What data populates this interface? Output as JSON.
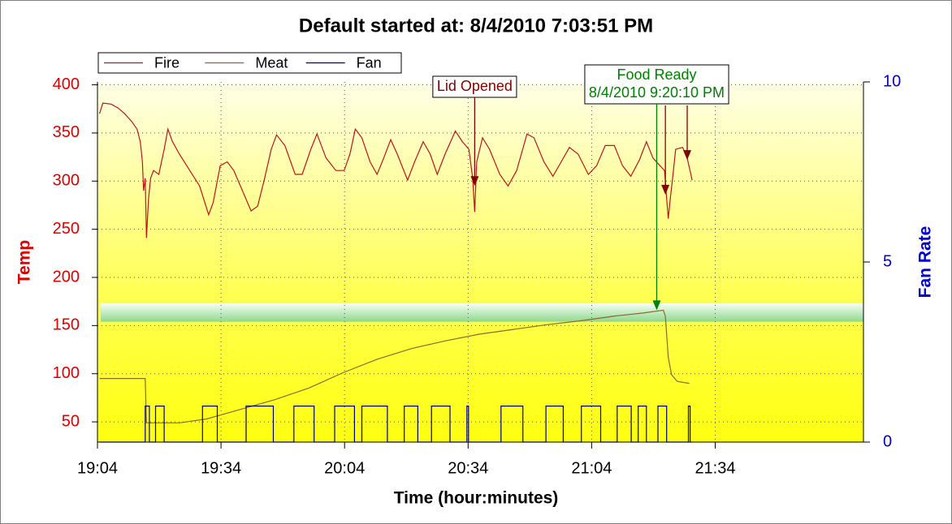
{
  "chart_data": {
    "type": "line",
    "title": "Default started at: 8/4/2010 7:03:51 PM",
    "y_label": "Temp",
    "y2_label": "Fan Rate",
    "x_label": "Time (hour:minutes)",
    "legend": "top-left",
    "grid": true,
    "xlim": [
      1144,
      1330
    ],
    "xticks": [
      {
        "value": 1144,
        "label": "19:04"
      },
      {
        "value": 1174,
        "label": "19:34"
      },
      {
        "value": 1204,
        "label": "20:04"
      },
      {
        "value": 1234,
        "label": "20:34"
      },
      {
        "value": 1264,
        "label": "21:04"
      },
      {
        "value": 1294,
        "label": "21:34"
      }
    ],
    "ylim": [
      29,
      403
    ],
    "yticks": [
      50,
      100,
      150,
      200,
      250,
      300,
      350,
      400
    ],
    "y2lim": [
      0,
      10
    ],
    "y2ticks": [
      0,
      5,
      10
    ],
    "target_band": [
      154,
      173
    ],
    "series": [
      {
        "name": "Fire",
        "color": "#c0141c",
        "x": [
          1144.5,
          1145.3,
          1147.3,
          1149.0,
          1150.6,
          1152.3,
          1153.6,
          1154.4,
          1154.9,
          1155.2,
          1155.6,
          1155.9,
          1156.4,
          1156.9,
          1157.6,
          1158.9,
          1160.2,
          1161.1,
          1162.2,
          1163.9,
          1166.4,
          1168.8,
          1171.0,
          1172.1,
          1173.8,
          1175.5,
          1177.1,
          1179.6,
          1181.3,
          1182.9,
          1184.6,
          1186.2,
          1187.5,
          1189.5,
          1192.0,
          1193.7,
          1195.8,
          1197.3,
          1199.5,
          1201.9,
          1203.9,
          1205.3,
          1206.6,
          1208.2,
          1210.2,
          1211.9,
          1213.5,
          1215.2,
          1216.8,
          1219.3,
          1221.0,
          1223.1,
          1224.8,
          1226.5,
          1228.4,
          1230.9,
          1232.6,
          1234.2,
          1235.1,
          1235.6,
          1236.1,
          1237.5,
          1239.2,
          1241.7,
          1243.7,
          1245.8,
          1248.3,
          1250.0,
          1252.4,
          1254.6,
          1256.6,
          1258.6,
          1260.7,
          1263.2,
          1265.2,
          1267.3,
          1269.5,
          1271.5,
          1273.5,
          1275.6,
          1277.3,
          1278.9,
          1280.6,
          1281.7,
          1282.2,
          1282.6,
          1283.1,
          1283.6,
          1284.4,
          1286.1,
          1287.2,
          1288.4
        ],
        "values": [
          370,
          381,
          380,
          376,
          370,
          362,
          354,
          341,
          320,
          290,
          303,
          241,
          282,
          303,
          311,
          307,
          333,
          354,
          341,
          328,
          311,
          295,
          265,
          278,
          316,
          320,
          311,
          286,
          269,
          274,
          303,
          333,
          348,
          337,
          307,
          307,
          333,
          349,
          324,
          311,
          311,
          328,
          354,
          345,
          320,
          307,
          324,
          343,
          328,
          301,
          320,
          341,
          328,
          307,
          328,
          352,
          341,
          333,
          303,
          268,
          320,
          345,
          333,
          307,
          295,
          311,
          349,
          345,
          320,
          305,
          320,
          335,
          328,
          307,
          316,
          337,
          337,
          316,
          305,
          322,
          341,
          324,
          316,
          311,
          282,
          261,
          282,
          301,
          333,
          335,
          324,
          301
        ]
      },
      {
        "name": "Meat",
        "color": "#8b6a2a",
        "x": [
          1144.5,
          1155.6,
          1155.9,
          1163.9,
          1170.5,
          1178.8,
          1187.0,
          1195.3,
          1203.6,
          1211.9,
          1220.2,
          1228.4,
          1236.7,
          1245.0,
          1253.3,
          1261.5,
          1269.8,
          1276.5,
          1281.4,
          1281.9,
          1282.6,
          1283.4,
          1284.8,
          1287.7
        ],
        "values": [
          95,
          95,
          49,
          49,
          53,
          63,
          73,
          85,
          101,
          115,
          126,
          134,
          141,
          146,
          151,
          155,
          160,
          163,
          166,
          160,
          117,
          99,
          92,
          90
        ]
      },
      {
        "name": "Fan",
        "color": "#000080",
        "axis": "y2",
        "x": [
          1144.5,
          1155.6,
          1155.6,
          1156.6,
          1156.6,
          1158.1,
          1158.1,
          1160.2,
          1160.2,
          1169.5,
          1169.5,
          1173.1,
          1173.1,
          1180.1,
          1180.1,
          1186.7,
          1186.7,
          1191.7,
          1191.7,
          1196.6,
          1196.6,
          1201.6,
          1201.6,
          1206.4,
          1206.4,
          1208.2,
          1208.2,
          1214.4,
          1214.4,
          1218.5,
          1218.5,
          1221.8,
          1221.8,
          1225.1,
          1225.1,
          1229.6,
          1229.6,
          1233.7,
          1233.7,
          1234.1,
          1234.1,
          1242.0,
          1242.0,
          1247.3,
          1247.3,
          1252.9,
          1252.9,
          1257.1,
          1257.1,
          1261.5,
          1261.5,
          1266.2,
          1266.2,
          1270.2,
          1270.2,
          1273.6,
          1273.6,
          1275.3,
          1275.3,
          1277.3,
          1277.3,
          1280.1,
          1280.1,
          1282.2,
          1282.2,
          1287.5,
          1287.5,
          1287.9,
          1287.9,
          1288.4
        ],
        "values": [
          0,
          0,
          1,
          1,
          0,
          0,
          1,
          1,
          0,
          0,
          1,
          1,
          0,
          0,
          1,
          1,
          0,
          0,
          1,
          1,
          0,
          0,
          1,
          1,
          0,
          0,
          1,
          1,
          0,
          0,
          1,
          1,
          0,
          0,
          1,
          1,
          0,
          0,
          1,
          1,
          0,
          0,
          1,
          1,
          0,
          0,
          1,
          1,
          0,
          0,
          1,
          1,
          0,
          0,
          1,
          1,
          0,
          0,
          1,
          1,
          0,
          0,
          1,
          1,
          0,
          0,
          1,
          1,
          0,
          0
        ]
      }
    ],
    "annotations": [
      {
        "lines": [
          "Lid Opened"
        ],
        "x": 1235.6,
        "y": 295,
        "color": "#800000"
      },
      {
        "lines": [
          "Food Ready",
          "8/4/2010 9:20:10 PM"
        ],
        "x": 1279.8,
        "y": 166,
        "color": "#008000"
      }
    ],
    "markers": [
      {
        "x": 1281.9,
        "y": 286,
        "color": "#800000"
      },
      {
        "x": 1287.2,
        "y": 322,
        "color": "#800000"
      }
    ]
  }
}
